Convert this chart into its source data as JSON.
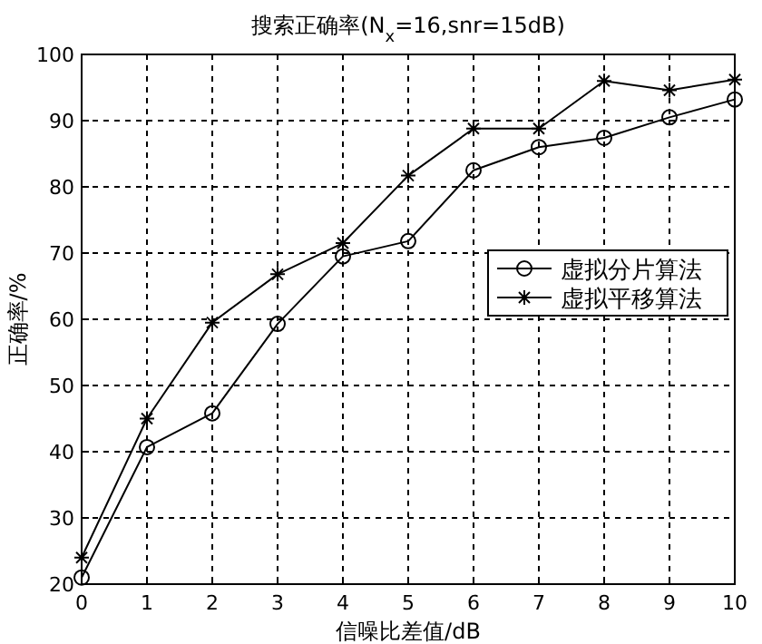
{
  "chart_data": {
    "type": "line",
    "title": "搜索正确率(N$_{x}$=16,snr=15dB)",
    "xlabel": "信噪比差值/dB",
    "ylabel": "正确率/%",
    "x": [
      0,
      1,
      2,
      3,
      4,
      5,
      6,
      7,
      8,
      9,
      10
    ],
    "series": [
      {
        "name": "虚拟分片算法",
        "color": "#000000",
        "marker": "circle",
        "values": [
          21,
          40.7,
          45.8,
          59.3,
          69.5,
          71.8,
          82.5,
          86,
          87.4,
          90.5,
          93.2
        ]
      },
      {
        "name": "虚拟平移算法",
        "color": "#000000",
        "marker": "cross",
        "values": [
          24,
          45,
          59.5,
          66.8,
          71.5,
          81.7,
          88.8,
          88.8,
          96,
          94.6,
          96.2
        ]
      }
    ],
    "xlim": [
      0,
      10
    ],
    "xticks": [
      0,
      1,
      2,
      3,
      4,
      5,
      6,
      7,
      8,
      9,
      10
    ],
    "ylim": [
      20,
      100
    ],
    "yticks": [
      20,
      30,
      40,
      50,
      60,
      70,
      80,
      90,
      100
    ],
    "grid": true,
    "legend": "right",
    "line_style": "solid"
  }
}
